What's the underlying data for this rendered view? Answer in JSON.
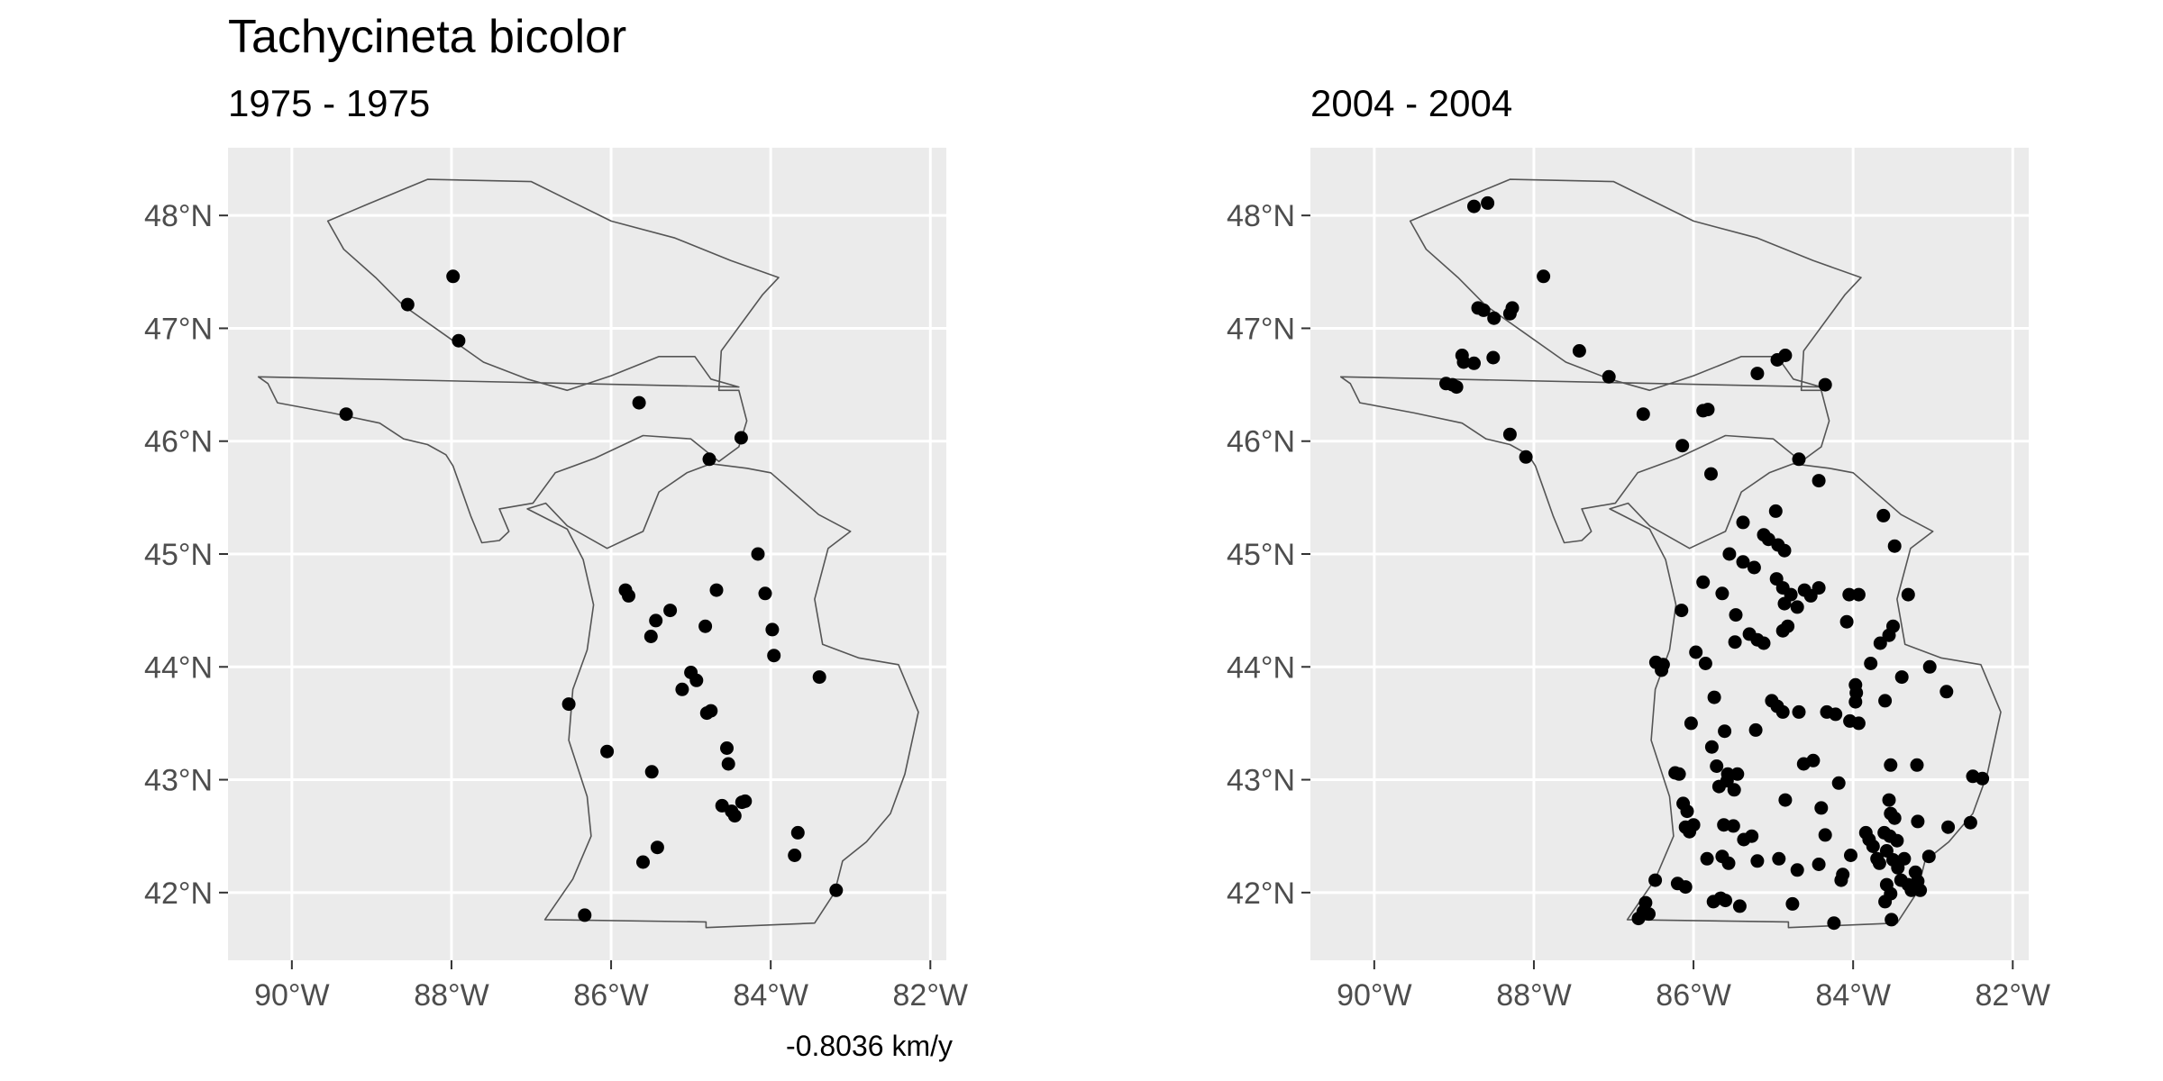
{
  "title": "Tachycineta bicolor",
  "caption": "-0.8036 km/y",
  "colors": {
    "panel": "#ebebeb",
    "grid": "#ffffff",
    "points": "#000000",
    "outline": "#555555",
    "ticks": "#4d4d4d"
  },
  "chart_data": [
    {
      "type": "scatter",
      "subtitle": "1975 - 1975",
      "xlim": [
        -90.8,
        -81.8
      ],
      "ylim": [
        41.4,
        48.6
      ],
      "x_ticks": [
        -90,
        -88,
        -86,
        -84,
        -82
      ],
      "x_tick_labels": [
        "90°W",
        "88°W",
        "86°W",
        "84°W",
        "82°W"
      ],
      "y_ticks": [
        42,
        43,
        44,
        45,
        46,
        47,
        48
      ],
      "y_tick_labels": [
        "42°N",
        "43°N",
        "44°N",
        "45°N",
        "46°N",
        "47°N",
        "48°N"
      ],
      "grid": true,
      "points": [
        [
          -89.32,
          46.24
        ],
        [
          -88.55,
          47.21
        ],
        [
          -87.98,
          47.46
        ],
        [
          -87.91,
          46.89
        ],
        [
          -85.65,
          46.34
        ],
        [
          -84.77,
          45.84
        ],
        [
          -84.37,
          46.03
        ],
        [
          -84.16,
          45.0
        ],
        [
          -85.82,
          44.68
        ],
        [
          -85.78,
          44.63
        ],
        [
          -85.26,
          44.5
        ],
        [
          -84.68,
          44.68
        ],
        [
          -84.07,
          44.65
        ],
        [
          -83.98,
          44.33
        ],
        [
          -85.44,
          44.41
        ],
        [
          -85.5,
          44.27
        ],
        [
          -84.82,
          44.36
        ],
        [
          -83.96,
          44.1
        ],
        [
          -83.39,
          43.91
        ],
        [
          -85.0,
          43.95
        ],
        [
          -84.93,
          43.88
        ],
        [
          -85.11,
          43.8
        ],
        [
          -84.8,
          43.59
        ],
        [
          -84.75,
          43.61
        ],
        [
          -86.53,
          43.67
        ],
        [
          -84.55,
          43.28
        ],
        [
          -84.53,
          43.14
        ],
        [
          -86.05,
          43.25
        ],
        [
          -85.49,
          43.07
        ],
        [
          -84.61,
          42.77
        ],
        [
          -84.49,
          42.72
        ],
        [
          -84.36,
          42.8
        ],
        [
          -84.32,
          42.81
        ],
        [
          -84.45,
          42.68
        ],
        [
          -83.66,
          42.53
        ],
        [
          -83.7,
          42.33
        ],
        [
          -85.42,
          42.4
        ],
        [
          -85.6,
          42.27
        ],
        [
          -83.18,
          42.02
        ],
        [
          -86.33,
          41.8
        ]
      ]
    },
    {
      "type": "scatter",
      "subtitle": "2004 - 2004",
      "xlim": [
        -90.8,
        -81.8
      ],
      "ylim": [
        41.4,
        48.6
      ],
      "x_ticks": [
        -90,
        -88,
        -86,
        -84,
        -82
      ],
      "x_tick_labels": [
        "90°W",
        "88°W",
        "86°W",
        "84°W",
        "82°W"
      ],
      "y_ticks": [
        42,
        43,
        44,
        45,
        46,
        47,
        48
      ],
      "y_tick_labels": [
        "42°N",
        "43°N",
        "44°N",
        "45°N",
        "46°N",
        "47°N",
        "48°N"
      ],
      "grid": true,
      "points": [
        [
          -88.75,
          48.08
        ],
        [
          -88.58,
          48.11
        ],
        [
          -87.88,
          47.46
        ],
        [
          -88.7,
          47.18
        ],
        [
          -88.63,
          47.16
        ],
        [
          -88.27,
          47.18
        ],
        [
          -88.3,
          47.13
        ],
        [
          -88.5,
          47.09
        ],
        [
          -87.43,
          46.8
        ],
        [
          -88.9,
          46.76
        ],
        [
          -88.88,
          46.7
        ],
        [
          -88.75,
          46.69
        ],
        [
          -88.51,
          46.74
        ],
        [
          -87.06,
          46.57
        ],
        [
          -89.1,
          46.51
        ],
        [
          -89.02,
          46.5
        ],
        [
          -88.97,
          46.48
        ],
        [
          -86.63,
          46.24
        ],
        [
          -85.88,
          46.27
        ],
        [
          -85.82,
          46.28
        ],
        [
          -88.3,
          46.06
        ],
        [
          -86.14,
          45.96
        ],
        [
          -88.1,
          45.86
        ],
        [
          -85.2,
          46.6
        ],
        [
          -84.95,
          46.72
        ],
        [
          -84.85,
          46.76
        ],
        [
          -84.35,
          46.5
        ],
        [
          -84.68,
          45.84
        ],
        [
          -84.43,
          45.65
        ],
        [
          -85.78,
          45.71
        ],
        [
          -84.97,
          45.38
        ],
        [
          -83.62,
          45.34
        ],
        [
          -83.48,
          45.07
        ],
        [
          -85.38,
          45.28
        ],
        [
          -85.12,
          45.17
        ],
        [
          -85.06,
          45.13
        ],
        [
          -84.94,
          45.08
        ],
        [
          -84.86,
          45.03
        ],
        [
          -85.55,
          45.0
        ],
        [
          -85.38,
          44.93
        ],
        [
          -85.24,
          44.88
        ],
        [
          -84.96,
          44.78
        ],
        [
          -84.88,
          44.7
        ],
        [
          -84.78,
          44.64
        ],
        [
          -84.61,
          44.68
        ],
        [
          -84.53,
          44.63
        ],
        [
          -84.43,
          44.7
        ],
        [
          -84.05,
          44.64
        ],
        [
          -83.93,
          44.64
        ],
        [
          -84.7,
          44.53
        ],
        [
          -84.86,
          44.56
        ],
        [
          -85.64,
          44.65
        ],
        [
          -85.88,
          44.75
        ],
        [
          -86.15,
          44.5
        ],
        [
          -85.47,
          44.46
        ],
        [
          -83.5,
          44.36
        ],
        [
          -83.55,
          44.28
        ],
        [
          -83.66,
          44.21
        ],
        [
          -83.31,
          44.64
        ],
        [
          -84.08,
          44.4
        ],
        [
          -85.3,
          44.29
        ],
        [
          -85.48,
          44.22
        ],
        [
          -85.2,
          44.24
        ],
        [
          -85.12,
          44.21
        ],
        [
          -84.88,
          44.32
        ],
        [
          -84.82,
          44.36
        ],
        [
          -85.97,
          44.13
        ],
        [
          -86.47,
          44.04
        ],
        [
          -86.38,
          44.02
        ],
        [
          -86.4,
          43.97
        ],
        [
          -85.85,
          44.03
        ],
        [
          -83.78,
          44.03
        ],
        [
          -83.04,
          44.0
        ],
        [
          -83.39,
          43.91
        ],
        [
          -82.83,
          43.78
        ],
        [
          -83.97,
          43.84
        ],
        [
          -83.96,
          43.77
        ],
        [
          -83.97,
          43.69
        ],
        [
          -83.6,
          43.7
        ],
        [
          -85.02,
          43.7
        ],
        [
          -84.95,
          43.65
        ],
        [
          -84.88,
          43.6
        ],
        [
          -84.68,
          43.6
        ],
        [
          -84.33,
          43.6
        ],
        [
          -84.22,
          43.58
        ],
        [
          -84.04,
          43.52
        ],
        [
          -83.93,
          43.5
        ],
        [
          -85.74,
          43.73
        ],
        [
          -86.03,
          43.5
        ],
        [
          -85.61,
          43.43
        ],
        [
          -85.22,
          43.44
        ],
        [
          -84.62,
          43.14
        ],
        [
          -84.5,
          43.17
        ],
        [
          -84.18,
          42.97
        ],
        [
          -83.53,
          43.13
        ],
        [
          -83.2,
          43.13
        ],
        [
          -82.5,
          43.03
        ],
        [
          -82.38,
          43.01
        ],
        [
          -86.23,
          43.06
        ],
        [
          -86.18,
          43.05
        ],
        [
          -85.77,
          43.29
        ],
        [
          -85.71,
          43.12
        ],
        [
          -85.57,
          43.05
        ],
        [
          -85.45,
          43.05
        ],
        [
          -85.58,
          42.99
        ],
        [
          -85.68,
          42.94
        ],
        [
          -85.49,
          42.91
        ],
        [
          -84.85,
          42.82
        ],
        [
          -84.4,
          42.75
        ],
        [
          -83.55,
          42.82
        ],
        [
          -83.53,
          42.7
        ],
        [
          -83.48,
          42.66
        ],
        [
          -83.19,
          42.63
        ],
        [
          -82.81,
          42.58
        ],
        [
          -82.53,
          42.62
        ],
        [
          -86.13,
          42.79
        ],
        [
          -86.08,
          42.72
        ],
        [
          -86.1,
          42.58
        ],
        [
          -86.05,
          42.54
        ],
        [
          -86.0,
          42.6
        ],
        [
          -85.62,
          42.6
        ],
        [
          -85.5,
          42.59
        ],
        [
          -85.27,
          42.5
        ],
        [
          -85.37,
          42.47
        ],
        [
          -84.93,
          42.3
        ],
        [
          -84.7,
          42.2
        ],
        [
          -84.43,
          42.25
        ],
        [
          -84.35,
          42.51
        ],
        [
          -84.03,
          42.33
        ],
        [
          -84.13,
          42.16
        ],
        [
          -84.15,
          42.11
        ],
        [
          -83.84,
          42.53
        ],
        [
          -83.8,
          42.47
        ],
        [
          -83.75,
          42.41
        ],
        [
          -83.7,
          42.3
        ],
        [
          -83.67,
          42.26
        ],
        [
          -83.61,
          42.53
        ],
        [
          -83.58,
          42.37
        ],
        [
          -83.54,
          42.5
        ],
        [
          -83.45,
          42.46
        ],
        [
          -83.5,
          42.29
        ],
        [
          -83.44,
          42.22
        ],
        [
          -83.36,
          42.3
        ],
        [
          -83.22,
          42.18
        ],
        [
          -83.4,
          42.11
        ],
        [
          -83.31,
          42.07
        ],
        [
          -83.19,
          42.1
        ],
        [
          -83.27,
          42.02
        ],
        [
          -83.16,
          42.02
        ],
        [
          -83.05,
          42.32
        ],
        [
          -83.58,
          42.07
        ],
        [
          -83.53,
          41.99
        ],
        [
          -83.6,
          41.92
        ],
        [
          -85.64,
          42.32
        ],
        [
          -85.56,
          42.26
        ],
        [
          -85.2,
          42.28
        ],
        [
          -85.83,
          42.3
        ],
        [
          -86.48,
          42.11
        ],
        [
          -86.2,
          42.08
        ],
        [
          -86.1,
          42.05
        ],
        [
          -85.75,
          41.92
        ],
        [
          -85.66,
          41.95
        ],
        [
          -85.6,
          41.93
        ],
        [
          -85.42,
          41.88
        ],
        [
          -84.76,
          41.9
        ],
        [
          -84.24,
          41.73
        ],
        [
          -83.52,
          41.76
        ],
        [
          -86.6,
          41.91
        ],
        [
          -86.63,
          41.83
        ],
        [
          -86.56,
          41.81
        ],
        [
          -86.69,
          41.77
        ]
      ]
    }
  ]
}
